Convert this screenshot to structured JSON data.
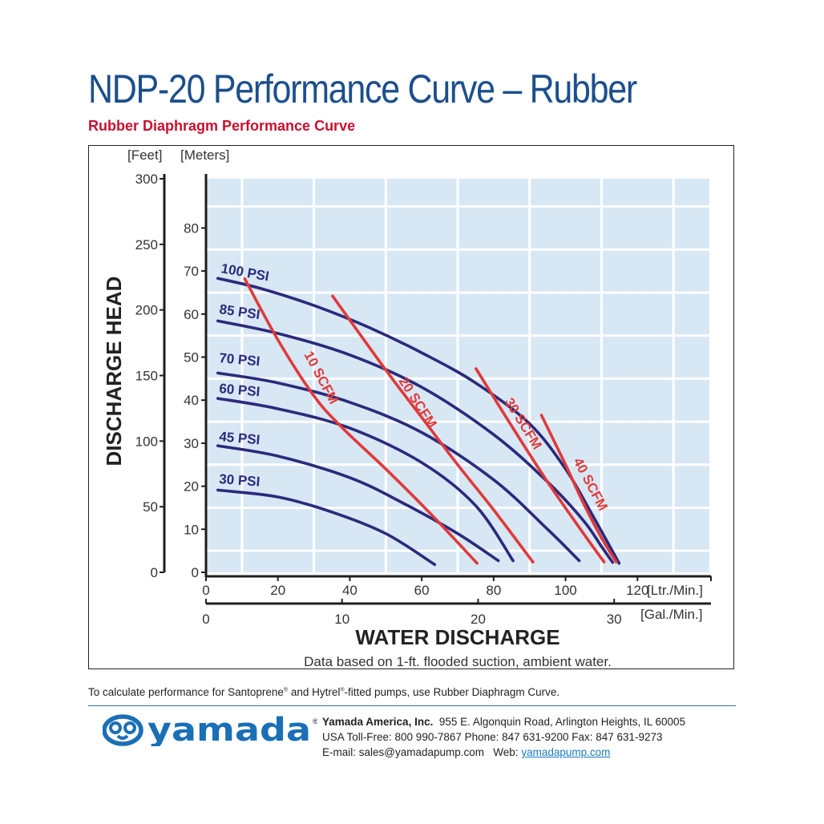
{
  "header": {
    "title": "NDP-20 Performance Curve – Rubber",
    "subtitle": "Rubber Diaphragm Performance Curve"
  },
  "chart_data": {
    "type": "line",
    "title": "",
    "xlabel": "WATER DISCHARGE",
    "ylabel": "DISCHARGE HEAD",
    "caption": "Data based on 1-ft. flooded suction, ambient water.",
    "x_primary": {
      "unit": "[Ltr./Min.]",
      "range": [
        0,
        140
      ],
      "ticks": [
        0,
        20,
        40,
        60,
        80,
        100,
        120
      ]
    },
    "x_secondary": {
      "unit": "[Gal./Min.]",
      "range": [
        0,
        37
      ],
      "ticks": [
        0,
        10,
        20,
        30
      ]
    },
    "y_primary": {
      "unit": "[Feet]",
      "range": [
        0,
        300
      ],
      "ticks": [
        0,
        50,
        100,
        150,
        200,
        250,
        300
      ]
    },
    "y_secondary": {
      "unit": "[Meters]",
      "range": [
        0,
        91.44
      ],
      "ticks": [
        0,
        10,
        20,
        30,
        40,
        50,
        60,
        70,
        80
      ]
    },
    "grid": true,
    "series": [
      {
        "name": "100 PSI",
        "group": "pressure",
        "color": "#2b2a7c",
        "x": [
          3.3,
          15,
          30,
          45,
          60,
          75,
          90,
          100,
          107,
          114.9
        ],
        "y": [
          68.3,
          66,
          62,
          57,
          51,
          44,
          34.5,
          24,
          14,
          2.1
        ]
      },
      {
        "name": "85 PSI",
        "group": "pressure",
        "color": "#2b2a7c",
        "x": [
          3.3,
          20,
          40,
          60,
          80,
          95,
          105,
          110,
          113.1
        ],
        "y": [
          58.4,
          55.5,
          50.5,
          43,
          32,
          21,
          12,
          6,
          2.3
        ]
      },
      {
        "name": "70 PSI",
        "group": "pressure",
        "color": "#2b2a7c",
        "x": [
          3.3,
          20,
          40,
          60,
          80,
          95,
          103.8
        ],
        "y": [
          46.3,
          44,
          39.5,
          32.5,
          21.5,
          10,
          2.7
        ]
      },
      {
        "name": "60 PSI",
        "group": "pressure",
        "color": "#2b2a7c",
        "x": [
          3.3,
          20,
          40,
          60,
          75,
          85.4
        ],
        "y": [
          40.4,
          38,
          33.5,
          25.5,
          15.5,
          2.7
        ]
      },
      {
        "name": "45 PSI",
        "group": "pressure",
        "color": "#2b2a7c",
        "x": [
          3.3,
          20,
          40,
          55,
          70,
          81.3
        ],
        "y": [
          29.4,
          27,
          22,
          16,
          9,
          2.7
        ]
      },
      {
        "name": "30 PSI",
        "group": "pressure",
        "color": "#2b2a7c",
        "x": [
          3.3,
          20,
          35,
          50,
          63.6
        ],
        "y": [
          19.1,
          17.5,
          14,
          9,
          1.8
        ]
      },
      {
        "name": "10 SCFM",
        "group": "air",
        "color": "#e03a3a",
        "x": [
          10.8,
          20,
          30,
          38,
          50,
          62,
          75.4
        ],
        "y": [
          68.2,
          54,
          41,
          33.5,
          24,
          14,
          2.1
        ]
      },
      {
        "name": "20 SCFM",
        "group": "air",
        "color": "#e03a3a",
        "x": [
          35.2,
          50,
          60,
          70,
          80,
          90.9
        ],
        "y": [
          64.2,
          47,
          36,
          25,
          14.5,
          2.4
        ]
      },
      {
        "name": "30 SCFM",
        "group": "air",
        "color": "#e03a3a",
        "x": [
          75.1,
          85,
          95,
          105,
          110.7
        ],
        "y": [
          47.3,
          34,
          21,
          9,
          2.4
        ]
      },
      {
        "name": "40 SCFM",
        "group": "air",
        "color": "#e03a3a",
        "x": [
          93.3,
          100,
          105,
          110,
          114.1
        ],
        "y": [
          36.5,
          25,
          16,
          8,
          2.4
        ]
      }
    ]
  },
  "footer": {
    "note_parts": [
      "To calculate performance for Santoprene",
      "®",
      " and Hytrel",
      "®",
      "-fitted pumps, use Rubber Diaphragm Curve."
    ],
    "logo_text": "yamada",
    "trademark": "®",
    "company_name": "Yamada America, Inc.",
    "address": "955 E. Algonquin Road, Arlington Heights, IL 60005",
    "phones": "USA Toll-Free: 800 990-7867 Phone: 847 631-9200 Fax: 847 631-9273",
    "email": "E-mail: sales@yamadapump.com",
    "web_label": "Web:",
    "web_link": "yamadapump.com"
  },
  "colors": {
    "title": "#1c4f8c",
    "subtitle": "#c8102e",
    "plot_background": "#d8e7f4",
    "pressure_curves": "#2b2a7c",
    "air_curves": "#e03a3a",
    "logo": "#1a6fb6"
  }
}
